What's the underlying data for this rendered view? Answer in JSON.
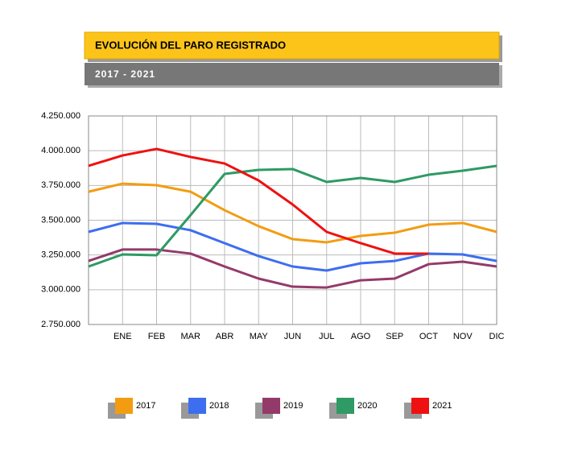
{
  "chart_data": {
    "type": "line",
    "title": "EVOLUCIÓN DEL PARO REGISTRADO",
    "subtitle": "2017 - 2021",
    "categories": [
      null,
      "ENE",
      "FEB",
      "MAR",
      "ABR",
      "MAY",
      "JUN",
      "JUL",
      "AGO",
      "SEP",
      "OCT",
      "NOV",
      "DIC"
    ],
    "series": [
      {
        "name": "2017",
        "color": "#f39c12",
        "values": [
          3705000,
          3763000,
          3752000,
          3705000,
          3572000,
          3457000,
          3364000,
          3341000,
          3387000,
          3410000,
          3468000,
          3480000,
          3416000
        ]
      },
      {
        "name": "2018",
        "color": "#3d6ef0",
        "values": [
          3416000,
          3480000,
          3474000,
          3428000,
          3335000,
          3242000,
          3167000,
          3138000,
          3190000,
          3207000,
          3260000,
          3254000,
          3207000
        ]
      },
      {
        "name": "2019",
        "color": "#943a6a",
        "values": [
          3207000,
          3289000,
          3289000,
          3260000,
          3167000,
          3080000,
          3022000,
          3016000,
          3068000,
          3080000,
          3184000,
          3202000,
          3167000
        ]
      },
      {
        "name": "2020",
        "color": "#2e9a64",
        "values": [
          3167000,
          3254000,
          3248000,
          3537000,
          3833000,
          3862000,
          3868000,
          3775000,
          3804000,
          3775000,
          3827000,
          3856000,
          3891000
        ]
      },
      {
        "name": "2021",
        "color": "#ee1111",
        "values": [
          3891000,
          3966000,
          4013000,
          3955000,
          3908000,
          3786000,
          3613000,
          3416000,
          3335000,
          3260000,
          3260000,
          null,
          null
        ]
      }
    ],
    "ylim": [
      2750000,
      4250000
    ],
    "yticks": [
      {
        "value": 2750000,
        "label": "2.750.000"
      },
      {
        "value": 3000000,
        "label": "3.000.000"
      },
      {
        "value": 3250000,
        "label": "3.250.000"
      },
      {
        "value": 3500000,
        "label": "3.500.000"
      },
      {
        "value": 3750000,
        "label": "3.750.000"
      },
      {
        "value": 4000000,
        "label": "4.000.000"
      },
      {
        "value": 4250000,
        "label": "4.250.000"
      }
    ],
    "grid": true
  }
}
